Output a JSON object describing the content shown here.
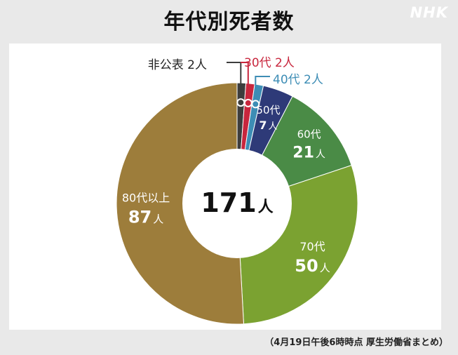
{
  "header": {
    "title": "年代別死者数",
    "logo": "NHK"
  },
  "chart_data": {
    "type": "pie",
    "title": "年代別死者数",
    "center_value": "171",
    "center_unit": "人",
    "slices": [
      {
        "name": "非公表",
        "value": 2,
        "unit": "人",
        "color": "#3d3d3d"
      },
      {
        "name": "30代",
        "value": 2,
        "unit": "人",
        "color": "#c8263d"
      },
      {
        "name": "40代",
        "value": 2,
        "unit": "人",
        "color": "#3d8db5"
      },
      {
        "name": "50代",
        "value": 7,
        "unit": "人",
        "color": "#2e3a78"
      },
      {
        "name": "60代",
        "value": 21,
        "unit": "人",
        "color": "#4a8b46"
      },
      {
        "name": "70代",
        "value": 50,
        "unit": "人",
        "color": "#7ba231"
      },
      {
        "name": "80代以上",
        "value": 87,
        "unit": "人",
        "color": "#9d7d3b"
      }
    ]
  },
  "footer": {
    "note": "（4月19日午後6時時点 厚生労働省まとめ）"
  }
}
